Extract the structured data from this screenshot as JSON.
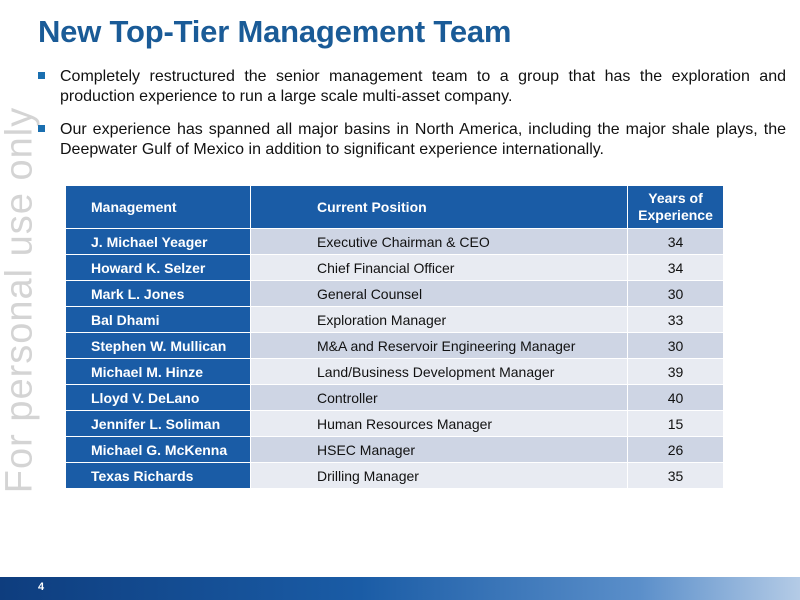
{
  "slide": {
    "title": "New Top-Tier Management Team",
    "watermark": "For personal use only",
    "page_number": "4"
  },
  "bullets": [
    "Completely restructured the senior management team to a group that has the exploration and production experience to run a large scale multi-asset company.",
    "Our experience has spanned all major basins in North America, including the major shale plays, the Deepwater Gulf of Mexico in addition to significant experience internationally."
  ],
  "table": {
    "headers": {
      "management": "Management",
      "position": "Current Position",
      "years_line1": "Years of",
      "years_line2": "Experience"
    },
    "rows": [
      {
        "name": "J. Michael Yeager",
        "position": "Executive Chairman & CEO",
        "years": "34"
      },
      {
        "name": "Howard K. Selzer",
        "position": "Chief Financial Officer",
        "years": "34"
      },
      {
        "name": "Mark L. Jones",
        "position": "General Counsel",
        "years": "30"
      },
      {
        "name": "Bal Dhami",
        "position": "Exploration Manager",
        "years": "33"
      },
      {
        "name": "Stephen W. Mullican",
        "position": "M&A and Reservoir Engineering Manager",
        "years": "30"
      },
      {
        "name": "Michael M. Hinze",
        "position": "Land/Business Development Manager",
        "years": "39"
      },
      {
        "name": "Lloyd V. DeLano",
        "position": "Controller",
        "years": "40"
      },
      {
        "name": "Jennifer L. Soliman",
        "position": "Human Resources Manager",
        "years": "15"
      },
      {
        "name": "Michael G. McKenna",
        "position": "HSEC Manager",
        "years": "26"
      },
      {
        "name": "Texas Richards",
        "position": "Drilling Manager",
        "years": "35"
      }
    ]
  },
  "colors": {
    "accent": "#1a5ca6",
    "title": "#1a5b97",
    "row_odd": "#ced5e4",
    "row_even": "#e8ebf2"
  }
}
